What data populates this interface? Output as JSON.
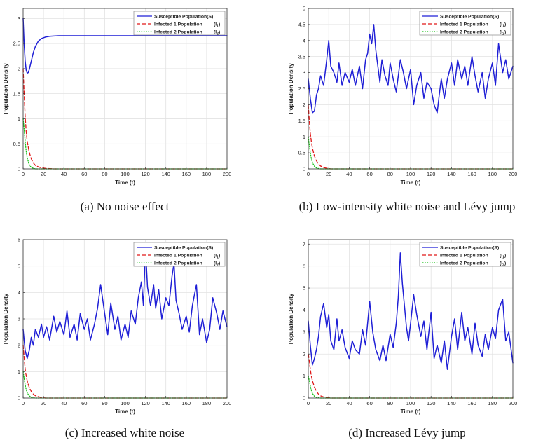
{
  "chart_data": [
    {
      "type": "line",
      "caption": "(a) No noise effect",
      "xlabel": "Time (t)",
      "ylabel": "Population Density",
      "xlim": [
        0,
        200
      ],
      "ylim": [
        0,
        3.2
      ],
      "xticks": [
        0,
        20,
        40,
        60,
        80,
        100,
        120,
        140,
        160,
        180,
        200
      ],
      "yticks": [
        0,
        0.5,
        1,
        1.5,
        2,
        2.5,
        3
      ],
      "ytick_labels": [
        "0",
        "0.5",
        "1",
        "1.5",
        "2",
        "2.5",
        "3"
      ],
      "legend": [
        {
          "label": "Susceptible Population(S)",
          "base": "",
          "sub": ""
        },
        {
          "label": "Infected 1 Population",
          "base": "(I",
          "sub": "1"
        },
        {
          "label": "Infected 2 Population",
          "base": "(I",
          "sub": "2"
        }
      ],
      "series": [
        {
          "name": "Susceptible Population(S)",
          "color": "#1f1fd6",
          "dash": "solid",
          "x": [
            0,
            1,
            2,
            3,
            4,
            5,
            6,
            8,
            10,
            12,
            15,
            18,
            22,
            26,
            30,
            35,
            40,
            50,
            60,
            80,
            100,
            120,
            140,
            160,
            180,
            200
          ],
          "y": [
            3.0,
            2.5,
            2.15,
            1.97,
            1.91,
            1.92,
            1.98,
            2.15,
            2.32,
            2.44,
            2.55,
            2.6,
            2.63,
            2.645,
            2.65,
            2.655,
            2.655,
            2.655,
            2.655,
            2.655,
            2.655,
            2.655,
            2.655,
            2.655,
            2.655,
            2.655
          ]
        },
        {
          "name": "Infected 1 Population (I1)",
          "color": "#e01818",
          "dash": "dashed",
          "x": [
            0,
            1,
            2,
            3,
            4,
            6,
            8,
            10,
            12,
            15,
            18,
            22,
            26,
            30,
            40,
            200
          ],
          "y": [
            2.0,
            1.5,
            1.05,
            0.75,
            0.55,
            0.33,
            0.2,
            0.12,
            0.07,
            0.04,
            0.02,
            0.01,
            0.005,
            0.0,
            0.0,
            0.0
          ]
        },
        {
          "name": "Infected 2 Population (I2)",
          "color": "#19c019",
          "dash": "dotted",
          "x": [
            0,
            1,
            2,
            3,
            4,
            6,
            8,
            10,
            12,
            15,
            20,
            200
          ],
          "y": [
            1.0,
            0.8,
            0.55,
            0.35,
            0.22,
            0.08,
            0.03,
            0.01,
            0.0,
            0.0,
            0.0,
            0.0
          ]
        }
      ]
    },
    {
      "type": "line",
      "caption": "(b) Low-intensity white noise and Lévy jump",
      "xlabel": "Time (t)",
      "ylabel": "Population Density",
      "xlim": [
        0,
        200
      ],
      "ylim": [
        0,
        5
      ],
      "xticks": [
        0,
        20,
        40,
        60,
        80,
        100,
        120,
        140,
        160,
        180,
        200
      ],
      "yticks": [
        0,
        0.5,
        1,
        1.5,
        2,
        2.5,
        3,
        3.5,
        4,
        4.5,
        5
      ],
      "ytick_labels": [
        "0",
        "0.5",
        "1",
        "1.5",
        "2",
        "2.5",
        "3",
        "3.5",
        "4",
        "4.5",
        "5"
      ],
      "legend": [
        {
          "label": "Susceptible Population(S)",
          "base": "",
          "sub": ""
        },
        {
          "label": "Infected 1 Population",
          "base": "(I",
          "sub": "1"
        },
        {
          "label": "Infected 2 Population",
          "base": "(I",
          "sub": "2"
        }
      ],
      "series": [
        {
          "name": "Susceptible Population(S)",
          "color": "#1f1fd6",
          "dash": "solid",
          "x": [
            0,
            2,
            4,
            6,
            8,
            10,
            12,
            15,
            18,
            20,
            22,
            25,
            28,
            30,
            33,
            36,
            40,
            43,
            46,
            50,
            53,
            56,
            58,
            60,
            62,
            64,
            66,
            68,
            70,
            72,
            75,
            78,
            80,
            83,
            86,
            90,
            93,
            96,
            100,
            103,
            106,
            110,
            113,
            116,
            120,
            123,
            126,
            128,
            130,
            133,
            136,
            140,
            143,
            146,
            150,
            153,
            156,
            160,
            163,
            166,
            170,
            173,
            176,
            180,
            183,
            186,
            190,
            193,
            196,
            200
          ],
          "y": [
            2.8,
            2.2,
            1.75,
            1.8,
            2.3,
            2.5,
            2.9,
            2.6,
            3.4,
            4.0,
            3.2,
            3.0,
            2.7,
            3.3,
            2.6,
            3.0,
            2.7,
            3.1,
            2.6,
            3.2,
            2.5,
            3.4,
            3.6,
            4.2,
            3.9,
            4.5,
            3.7,
            3.2,
            2.7,
            3.4,
            2.9,
            2.6,
            3.3,
            2.8,
            2.4,
            3.4,
            3.0,
            2.5,
            3.1,
            2.0,
            2.6,
            3.0,
            2.2,
            2.7,
            2.5,
            2.0,
            1.75,
            2.3,
            2.8,
            2.2,
            2.8,
            3.3,
            2.6,
            3.4,
            2.8,
            3.2,
            2.6,
            3.5,
            2.9,
            2.4,
            3.0,
            2.2,
            2.8,
            3.3,
            2.6,
            3.9,
            3.0,
            3.4,
            2.8,
            3.2
          ]
        },
        {
          "name": "Infected 1 Population (I1)",
          "color": "#e01818",
          "dash": "dashed",
          "x": [
            0,
            1,
            2,
            3,
            4,
            6,
            8,
            10,
            12,
            15,
            18,
            22,
            30,
            200
          ],
          "y": [
            2.0,
            1.5,
            1.1,
            0.85,
            0.65,
            0.4,
            0.25,
            0.15,
            0.09,
            0.04,
            0.02,
            0.0,
            0.0,
            0.0
          ]
        },
        {
          "name": "Infected 2 Population (I2)",
          "color": "#19c019",
          "dash": "dotted",
          "x": [
            0,
            1,
            2,
            3,
            4,
            6,
            8,
            10,
            12,
            15,
            20,
            200
          ],
          "y": [
            1.0,
            0.75,
            0.5,
            0.32,
            0.2,
            0.08,
            0.03,
            0.01,
            0.0,
            0.0,
            0.0,
            0.0
          ]
        }
      ]
    },
    {
      "type": "line",
      "caption": "(c) Increased white noise",
      "xlabel": "Time (t)",
      "ylabel": "Population Density",
      "xlim": [
        0,
        200
      ],
      "ylim": [
        0,
        6
      ],
      "xticks": [
        0,
        20,
        40,
        60,
        80,
        100,
        120,
        140,
        160,
        180,
        200
      ],
      "yticks": [
        0,
        1,
        2,
        3,
        4,
        5,
        6
      ],
      "ytick_labels": [
        "0",
        "1",
        "2",
        "3",
        "4",
        "5",
        "6"
      ],
      "legend": [
        {
          "label": "Susceptible Population(S)",
          "base": "",
          "sub": ""
        },
        {
          "label": "Infected 1 Population",
          "base": "(I",
          "sub": "1"
        },
        {
          "label": "Infected 2 Population",
          "base": "(I",
          "sub": "2"
        }
      ],
      "series": [
        {
          "name": "Susceptible Population(S)",
          "color": "#1f1fd6",
          "dash": "solid",
          "x": [
            0,
            2,
            4,
            6,
            8,
            10,
            12,
            15,
            18,
            20,
            23,
            26,
            30,
            33,
            36,
            40,
            43,
            46,
            50,
            53,
            56,
            60,
            63,
            66,
            70,
            73,
            76,
            80,
            83,
            86,
            90,
            93,
            96,
            100,
            103,
            106,
            110,
            113,
            116,
            118,
            120,
            122,
            125,
            128,
            130,
            133,
            136,
            140,
            143,
            146,
            148,
            150,
            153,
            156,
            160,
            163,
            166,
            170,
            173,
            176,
            180,
            183,
            186,
            190,
            193,
            196,
            200
          ],
          "y": [
            2.6,
            1.8,
            1.5,
            1.8,
            2.3,
            2.0,
            2.6,
            2.3,
            2.8,
            2.3,
            2.7,
            2.2,
            3.1,
            2.5,
            2.9,
            2.4,
            3.3,
            2.3,
            2.8,
            2.2,
            3.2,
            2.6,
            3.0,
            2.2,
            2.8,
            3.4,
            4.3,
            3.2,
            2.4,
            3.6,
            2.6,
            3.1,
            2.2,
            2.8,
            2.3,
            3.3,
            2.8,
            3.8,
            4.4,
            3.5,
            5.7,
            4.2,
            3.5,
            4.3,
            3.4,
            4.1,
            3.0,
            3.8,
            3.5,
            4.6,
            5.1,
            3.7,
            3.2,
            2.6,
            3.1,
            2.5,
            3.5,
            4.3,
            2.4,
            3.0,
            2.1,
            2.6,
            3.8,
            3.2,
            2.6,
            3.3,
            2.7
          ]
        },
        {
          "name": "Infected 1 Population (I1)",
          "color": "#e01818",
          "dash": "dashed",
          "x": [
            0,
            1,
            2,
            3,
            4,
            6,
            8,
            10,
            12,
            15,
            18,
            22,
            30,
            200
          ],
          "y": [
            2.0,
            1.55,
            1.1,
            0.85,
            0.65,
            0.4,
            0.25,
            0.15,
            0.09,
            0.05,
            0.02,
            0.0,
            0.0,
            0.0
          ]
        },
        {
          "name": "Infected 2 Population (I2)",
          "color": "#19c019",
          "dash": "dotted",
          "x": [
            0,
            1,
            2,
            3,
            4,
            6,
            8,
            10,
            12,
            15,
            20,
            200
          ],
          "y": [
            1.0,
            0.75,
            0.5,
            0.32,
            0.2,
            0.08,
            0.03,
            0.01,
            0.0,
            0.0,
            0.0,
            0.0
          ]
        }
      ]
    },
    {
      "type": "line",
      "caption": "(d) Increased Lévy jump",
      "xlabel": "Time (t)",
      "ylabel": "Population Density",
      "xlim": [
        0,
        200
      ],
      "ylim": [
        0,
        7.2
      ],
      "xticks": [
        0,
        20,
        40,
        60,
        80,
        100,
        120,
        140,
        160,
        180,
        200
      ],
      "yticks": [
        0,
        1,
        2,
        3,
        4,
        5,
        6,
        7
      ],
      "ytick_labels": [
        "0",
        "1",
        "2",
        "3",
        "4",
        "5",
        "6",
        "7"
      ],
      "legend": [
        {
          "label": "Susceptible Population(S)",
          "base": "",
          "sub": ""
        },
        {
          "label": "Infected 1 Population",
          "base": "(I",
          "sub": "1"
        },
        {
          "label": "Infected 2 Population",
          "base": "(I",
          "sub": "2"
        }
      ],
      "series": [
        {
          "name": "Susceptible Population(S)",
          "color": "#1f1fd6",
          "dash": "solid",
          "x": [
            0,
            2,
            4,
            6,
            8,
            10,
            12,
            15,
            18,
            20,
            22,
            25,
            28,
            30,
            33,
            36,
            40,
            43,
            46,
            50,
            53,
            56,
            60,
            63,
            66,
            70,
            73,
            76,
            80,
            83,
            86,
            88,
            90,
            92,
            94,
            96,
            98,
            100,
            103,
            106,
            110,
            113,
            116,
            120,
            123,
            126,
            130,
            133,
            136,
            140,
            143,
            146,
            150,
            153,
            156,
            160,
            163,
            166,
            170,
            173,
            176,
            180,
            183,
            186,
            190,
            193,
            196,
            200
          ],
          "y": [
            3.5,
            2.4,
            1.5,
            1.8,
            2.2,
            2.8,
            3.7,
            4.3,
            3.2,
            3.8,
            2.6,
            2.2,
            3.6,
            2.6,
            3.1,
            2.3,
            1.8,
            2.6,
            2.2,
            2.0,
            3.1,
            2.4,
            4.4,
            3.0,
            2.2,
            1.7,
            2.4,
            1.7,
            2.9,
            2.3,
            3.4,
            4.6,
            6.6,
            5.2,
            4.2,
            3.2,
            2.6,
            3.4,
            4.7,
            3.8,
            2.8,
            3.5,
            2.2,
            3.9,
            1.8,
            2.4,
            1.6,
            2.6,
            1.3,
            2.8,
            3.6,
            2.2,
            3.9,
            2.6,
            3.2,
            2.0,
            3.4,
            2.4,
            1.9,
            2.9,
            2.2,
            3.2,
            2.7,
            4.0,
            4.5,
            2.6,
            3.0,
            1.6
          ]
        },
        {
          "name": "Infected 1 Population (I1)",
          "color": "#e01818",
          "dash": "dashed",
          "x": [
            0,
            1,
            2,
            3,
            4,
            6,
            8,
            10,
            12,
            15,
            18,
            22,
            30,
            200
          ],
          "y": [
            2.0,
            1.7,
            1.3,
            1.0,
            0.8,
            0.5,
            0.3,
            0.18,
            0.1,
            0.05,
            0.02,
            0.0,
            0.0,
            0.0
          ]
        },
        {
          "name": "Infected 2 Population (I2)",
          "color": "#19c019",
          "dash": "dotted",
          "x": [
            0,
            1,
            2,
            3,
            4,
            6,
            8,
            10,
            12,
            15,
            20,
            200
          ],
          "y": [
            1.0,
            0.8,
            0.55,
            0.35,
            0.22,
            0.08,
            0.03,
            0.01,
            0.0,
            0.0,
            0.0,
            0.0
          ]
        }
      ]
    }
  ]
}
